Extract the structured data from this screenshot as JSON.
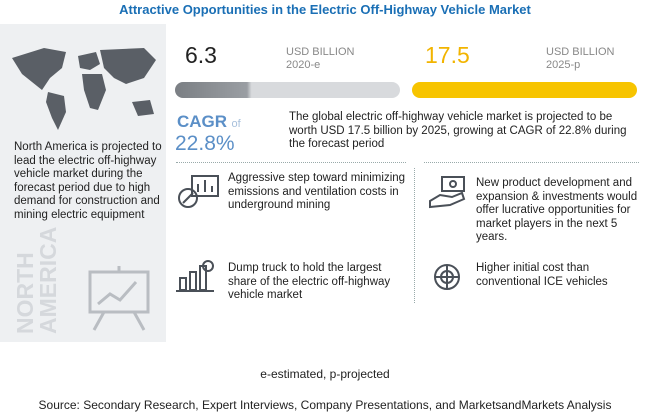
{
  "header": {
    "title": "Attractive Opportunities in the Electric Off-Highway Vehicle Market"
  },
  "left_panel": {
    "text": "North America is projected to lead the electric off-highway vehicle market during the forecast period due to high demand for construction and mining electric equipment",
    "region": "NORTH AMERICA"
  },
  "market_size": [
    {
      "value": "6.3",
      "unit": "USD BILLION",
      "year": "2020-e"
    },
    {
      "value": "17.5",
      "unit": "USD BILLION",
      "year": "2025-p"
    }
  ],
  "cagr": {
    "label": "CAGR",
    "of": "of",
    "value": "22.8%",
    "description": "The global electric off-highway vehicle market is projected to be worth USD  17.5 billion by 2025, growing at CAGR of 22.8% during the forecast period"
  },
  "points": [
    "Aggressive step toward minimizing emissions and ventilation costs in underground mining",
    "New product development and expansion & investments would offer lucrative opportunities for market players in the next 5 years.",
    "Dump truck to hold the largest share of the electric off-highway vehicle market",
    "Higher initial cost than conventional ICE vehicles"
  ],
  "footnote": "e-estimated, p-projected",
  "source": "Source: Secondary Research, Expert Interviews, Company Presentations, and MarketsandMarkets Analysis"
}
